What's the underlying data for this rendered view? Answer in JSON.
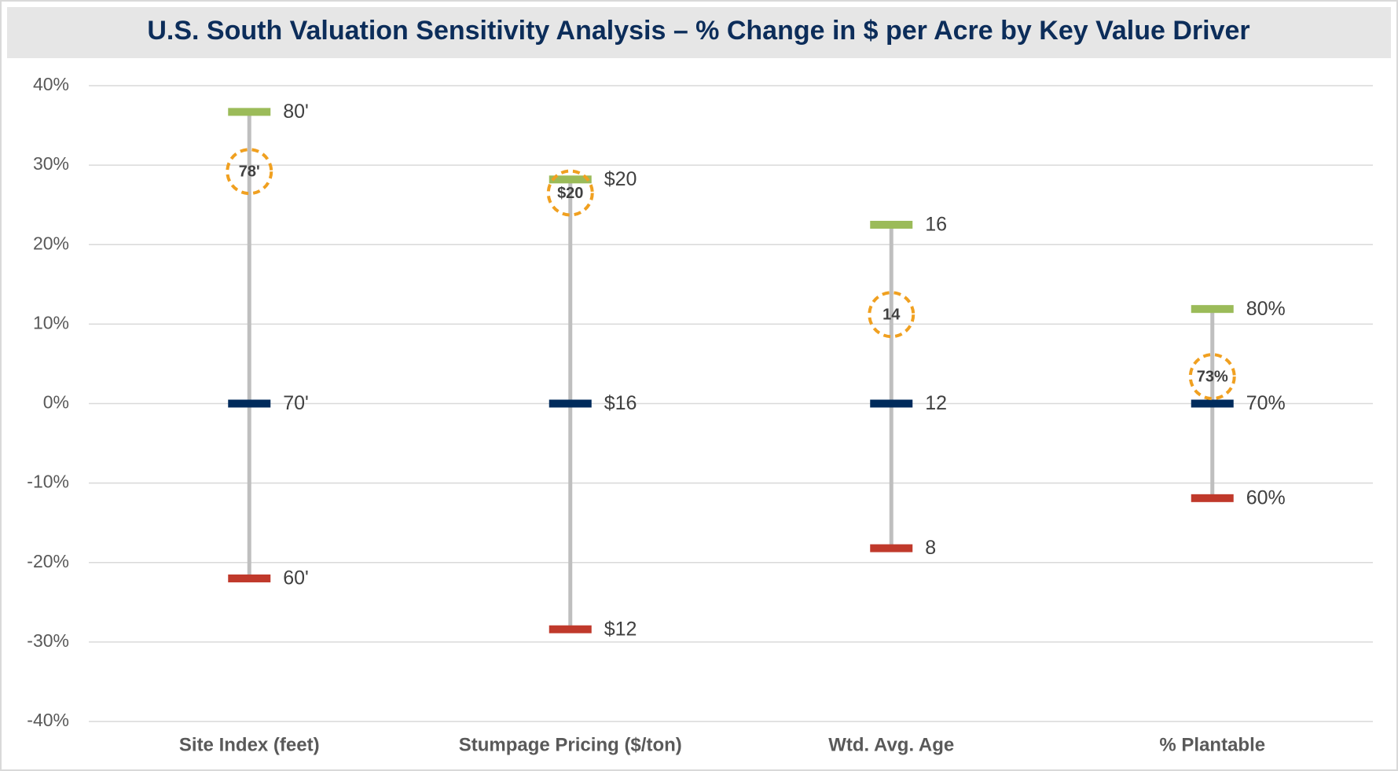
{
  "chart_data": {
    "type": "range",
    "title": "U.S. South Valuation Sensitivity Analysis – % Change in $ per Acre by Key Value Driver",
    "categories": [
      "Site Index (feet)",
      "Stumpage Pricing ($/ton)",
      "Wtd. Avg. Age",
      "% Plantable"
    ],
    "series": [
      {
        "color": "#9bbb59",
        "values": [
          36.7,
          28.2,
          22.5,
          11.9
        ],
        "value_labels": [
          "80'",
          "$20",
          "16",
          "80%"
        ]
      },
      {
        "color": "#002b5c",
        "values": [
          0,
          0,
          0,
          0
        ],
        "value_labels": [
          "70'",
          "$16",
          "12",
          "70%"
        ]
      },
      {
        "color": "#c0392b",
        "values": [
          -22,
          -28.4,
          -18.2,
          -11.9
        ],
        "value_labels": [
          "60'",
          "$12",
          "8",
          "60%"
        ]
      },
      {
        "color": "#f0a020",
        "values": [
          29.2,
          26.5,
          11.2,
          3.4
        ],
        "value_labels": [
          "78'",
          "$20",
          "14",
          "73%"
        ]
      }
    ],
    "ylim": [
      -40,
      40
    ],
    "yticks": [
      {
        "value": -40,
        "label": "-40%"
      },
      {
        "value": -30,
        "label": "-30%"
      },
      {
        "value": -20,
        "label": "-20%"
      },
      {
        "value": -10,
        "label": "-10%"
      },
      {
        "value": 0,
        "label": "0%"
      },
      {
        "value": 10,
        "label": "10%"
      },
      {
        "value": 20,
        "label": "20%"
      },
      {
        "value": 30,
        "label": "30%"
      },
      {
        "value": 40,
        "label": "40%"
      }
    ],
    "grid": true
  }
}
